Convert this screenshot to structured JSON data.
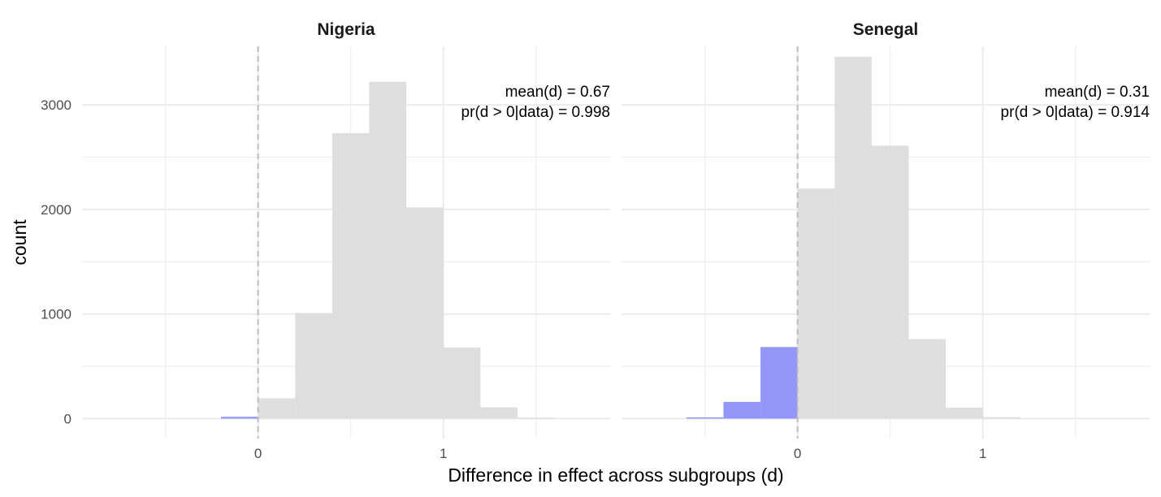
{
  "chart_data": {
    "type": "histogram",
    "xlabel": "Difference in effect across subgroups (d)",
    "ylabel": "count",
    "xlim": [
      -0.95,
      1.9
    ],
    "ylim": [
      -190,
      3560
    ],
    "x_ticks": [
      0,
      1
    ],
    "x_tick_labels": [
      "0",
      "1"
    ],
    "y_ticks": [
      0,
      1000,
      2000,
      3000
    ],
    "y_tick_labels": [
      "0",
      "1000",
      "2000",
      "3000"
    ],
    "y_minor_ticks": [
      500,
      1500,
      2500
    ],
    "grid": true,
    "reference_line": {
      "x": 0,
      "style": "dashed"
    },
    "colors": {
      "negative": "#9297f8",
      "positive": "#dedede",
      "grid": "#ebebeb",
      "reference": "#bdbdbd"
    },
    "panels": [
      {
        "title": "Nigeria",
        "annotation": [
          "mean(d) = 0.67",
          "pr(d > 0|data) = 0.998"
        ],
        "bins": [
          {
            "x0": -0.2,
            "x1": 0.0,
            "count": 18,
            "group": "negative"
          },
          {
            "x0": 0.0,
            "x1": 0.2,
            "count": 195,
            "group": "positive"
          },
          {
            "x0": 0.2,
            "x1": 0.4,
            "count": 1010,
            "group": "positive"
          },
          {
            "x0": 0.4,
            "x1": 0.6,
            "count": 2730,
            "group": "positive"
          },
          {
            "x0": 0.6,
            "x1": 0.8,
            "count": 3220,
            "group": "positive"
          },
          {
            "x0": 0.8,
            "x1": 1.0,
            "count": 2020,
            "group": "positive"
          },
          {
            "x0": 1.0,
            "x1": 1.2,
            "count": 680,
            "group": "positive"
          },
          {
            "x0": 1.2,
            "x1": 1.4,
            "count": 108,
            "group": "positive"
          },
          {
            "x0": 1.4,
            "x1": 1.6,
            "count": 10,
            "group": "positive"
          }
        ]
      },
      {
        "title": "Senegal",
        "annotation": [
          "mean(d) = 0.31",
          "pr(d > 0|data) = 0.914"
        ],
        "bins": [
          {
            "x0": -0.6,
            "x1": -0.4,
            "count": 12,
            "group": "negative"
          },
          {
            "x0": -0.4,
            "x1": -0.2,
            "count": 160,
            "group": "negative"
          },
          {
            "x0": -0.2,
            "x1": 0.0,
            "count": 685,
            "group": "negative"
          },
          {
            "x0": 0.0,
            "x1": 0.2,
            "count": 2200,
            "group": "positive"
          },
          {
            "x0": 0.2,
            "x1": 0.4,
            "count": 3460,
            "group": "positive"
          },
          {
            "x0": 0.4,
            "x1": 0.6,
            "count": 2610,
            "group": "positive"
          },
          {
            "x0": 0.6,
            "x1": 0.8,
            "count": 760,
            "group": "positive"
          },
          {
            "x0": 0.8,
            "x1": 1.0,
            "count": 105,
            "group": "positive"
          },
          {
            "x0": 1.0,
            "x1": 1.2,
            "count": 15,
            "group": "positive"
          }
        ]
      }
    ]
  }
}
